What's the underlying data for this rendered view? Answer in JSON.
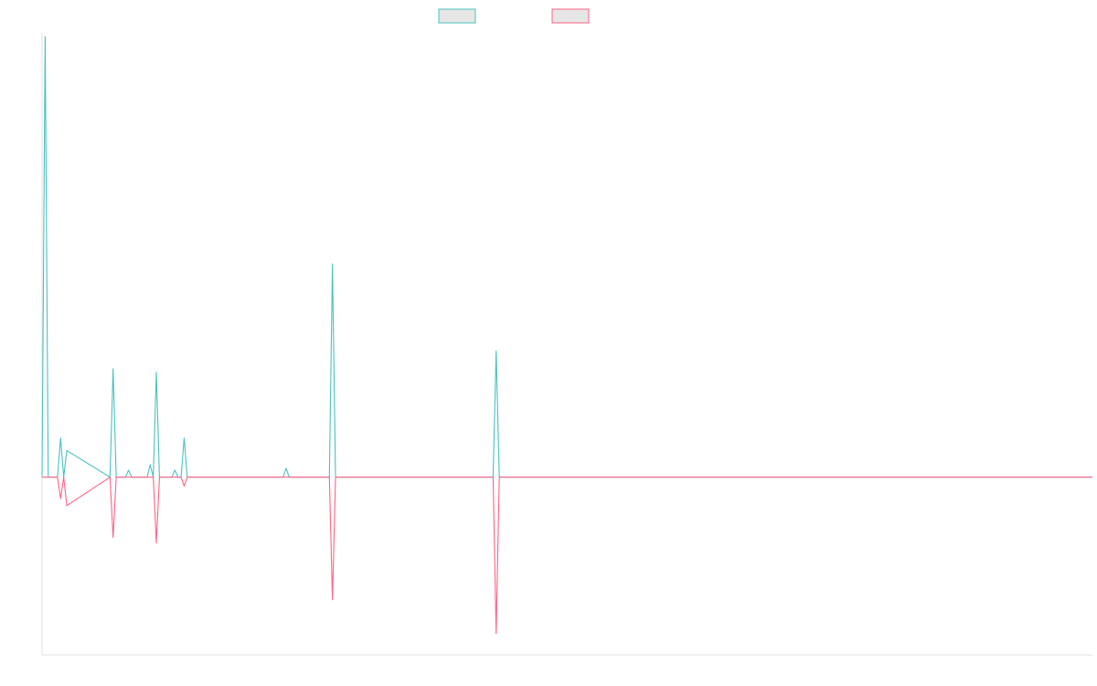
{
  "chart_data": {
    "type": "line",
    "title": "",
    "xlabel": "",
    "ylabel": "",
    "legend_position": "top-center",
    "grid": false,
    "xlim": [
      0,
      340
    ],
    "ylim": [
      -1,
      2.5
    ],
    "x": [
      0,
      1,
      2,
      3,
      4,
      5,
      6,
      7,
      8,
      22,
      23,
      24,
      27,
      28,
      29,
      34,
      35,
      36,
      37,
      38,
      39,
      42,
      43,
      44,
      45,
      46,
      47,
      48,
      49,
      78,
      79,
      80,
      93,
      94,
      95,
      146,
      147,
      148,
      340
    ],
    "series": [
      {
        "name": "",
        "color": "#4bc0c0",
        "values": [
          0,
          2.48,
          0,
          0,
          0,
          0,
          0.22,
          0,
          0.15,
          0,
          0.61,
          0,
          0,
          0.04,
          0,
          0,
          0.07,
          0,
          0.59,
          0,
          0,
          0,
          0.04,
          0,
          0,
          0.22,
          0,
          0,
          0,
          0,
          0.05,
          0,
          0,
          1.2,
          0,
          0,
          0.71,
          0,
          0
        ]
      },
      {
        "name": "",
        "color": "#ff6384",
        "values": [
          0,
          0,
          0,
          0,
          0,
          0,
          -0.12,
          0,
          -0.16,
          0,
          -0.34,
          0,
          0,
          0,
          0,
          0,
          0,
          0,
          -0.37,
          0,
          0,
          0,
          0,
          0,
          0,
          -0.05,
          0,
          0,
          0,
          0,
          0,
          0,
          0,
          -0.69,
          0,
          0,
          -0.88,
          0,
          0
        ]
      }
    ]
  }
}
